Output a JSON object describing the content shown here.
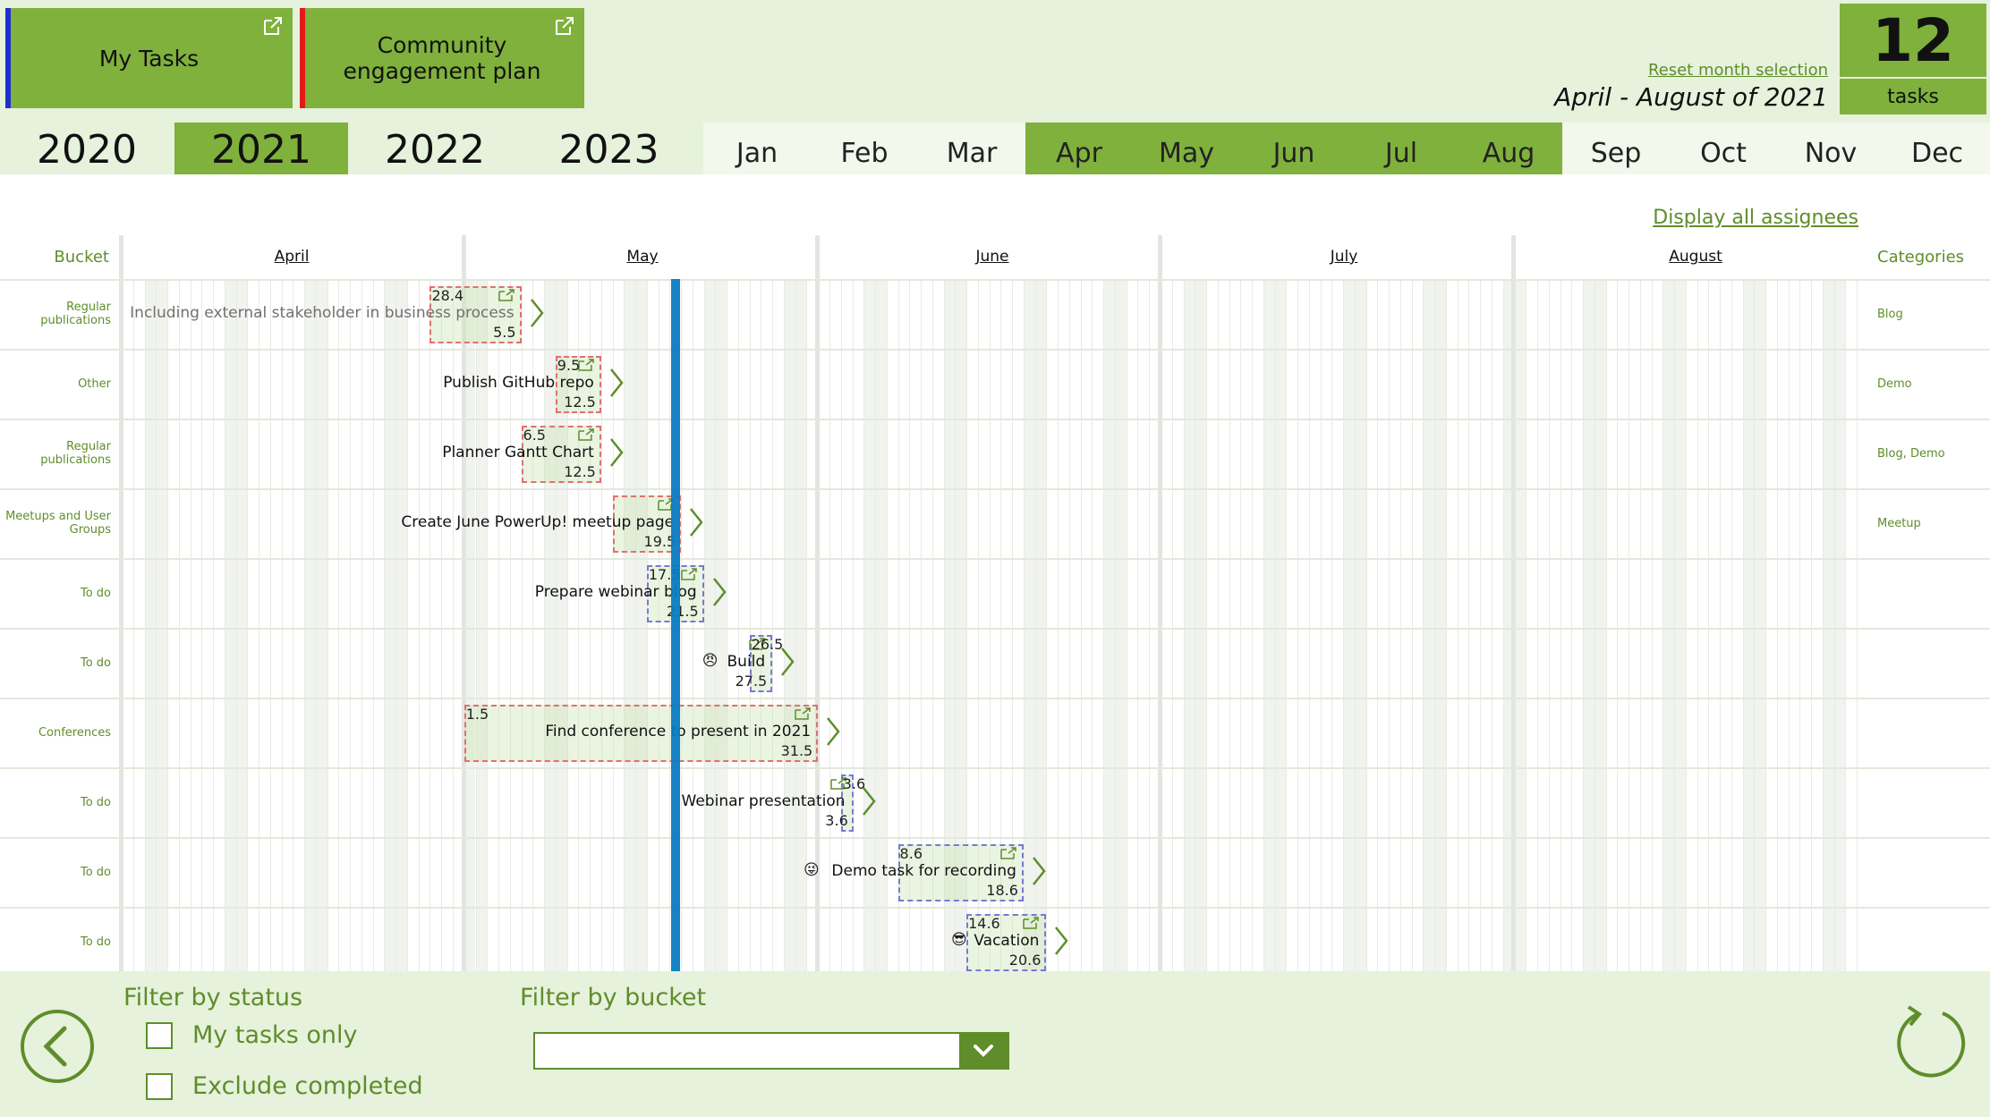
{
  "header": {
    "plans": [
      {
        "label": "My Tasks",
        "stripe_color": "#1d2fd0"
      },
      {
        "label": "Community engagement plan",
        "stripe_color": "#e01a1a"
      }
    ],
    "reset_link": "Reset month selection",
    "range_label": "April - August of 2021",
    "task_count": "12",
    "task_count_label": "tasks"
  },
  "years": [
    {
      "label": "2020",
      "selected": false
    },
    {
      "label": "2021",
      "selected": true
    },
    {
      "label": "2022",
      "selected": false
    },
    {
      "label": "2023",
      "selected": false
    }
  ],
  "months": [
    {
      "label": "Jan",
      "selected": false
    },
    {
      "label": "Feb",
      "selected": false
    },
    {
      "label": "Mar",
      "selected": false
    },
    {
      "label": "Apr",
      "selected": true
    },
    {
      "label": "May",
      "selected": true
    },
    {
      "label": "Jun",
      "selected": true
    },
    {
      "label": "Jul",
      "selected": true
    },
    {
      "label": "Aug",
      "selected": true
    },
    {
      "label": "Sep",
      "selected": false
    },
    {
      "label": "Oct",
      "selected": false
    },
    {
      "label": "Nov",
      "selected": false
    },
    {
      "label": "Dec",
      "selected": false
    }
  ],
  "gantt": {
    "display_all_link": "Display all assignees",
    "bucket_header": "Bucket",
    "categories_header": "Categories",
    "month_headers": [
      "April",
      "May",
      "June",
      "July",
      "August"
    ],
    "today": "2021-05-19",
    "colors": {
      "accent": "#7fb13c",
      "accent_dark": "#5f8d2a",
      "today": "#0a7bc2",
      "pink_border": "#e07070",
      "blue_border": "#7878d8"
    },
    "rows": [
      {
        "bucket": "Regular publications",
        "category": "Blog",
        "name": "Including external stakeholder in business process",
        "start_label": "28.4",
        "end_label": "5.5",
        "start": "2021-04-28",
        "end": "2021-05-05",
        "border": "pink",
        "muted": true,
        "icon": ""
      },
      {
        "bucket": "Other",
        "category": "Demo",
        "name": "Publish GitHub repo",
        "start_label": "9.5",
        "end_label": "12.5",
        "start": "2021-05-09",
        "end": "2021-05-12",
        "border": "pink",
        "muted": false,
        "icon": ""
      },
      {
        "bucket": "Regular publications",
        "category": "Blog, Demo",
        "name": "Planner Gantt Chart",
        "start_label": "6.5",
        "end_label": "12.5",
        "start": "2021-05-06",
        "end": "2021-05-12",
        "border": "pink",
        "muted": false,
        "icon": ""
      },
      {
        "bucket": "Meetups and User Groups",
        "category": "Meetup",
        "name": "Create June PowerUp! meetup page",
        "start_label": "",
        "end_label": "19.5",
        "start": "2021-05-14",
        "end": "2021-05-19",
        "border": "pink",
        "muted": false,
        "icon": ""
      },
      {
        "bucket": "To do",
        "category": "",
        "name": "Prepare webinar blog",
        "start_label": "17.5",
        "end_label": "21.5",
        "start": "2021-05-17",
        "end": "2021-05-21",
        "border": "blue",
        "muted": false,
        "icon": ""
      },
      {
        "bucket": "To do",
        "category": "",
        "name": "Build",
        "start_label": "26.5",
        "end_label": "27.5",
        "start": "2021-05-26",
        "end": "2021-05-27",
        "border": "blue",
        "muted": false,
        "icon": "😠"
      },
      {
        "bucket": "Conferences",
        "category": "",
        "name": "Find conference to present in 2021",
        "start_label": "1.5",
        "end_label": "31.5",
        "start": "2021-05-01",
        "end": "2021-05-31",
        "border": "pink",
        "muted": false,
        "icon": ""
      },
      {
        "bucket": "To do",
        "category": "",
        "name": "Webinar presentation",
        "start_label": "3.6",
        "end_label": "3.6",
        "start": "2021-06-03",
        "end": "2021-06-03",
        "border": "blue",
        "muted": false,
        "icon": ""
      },
      {
        "bucket": "To do",
        "category": "",
        "name": "Demo task for recording",
        "start_label": "8.6",
        "end_label": "18.6",
        "start": "2021-06-08",
        "end": "2021-06-18",
        "border": "blue",
        "muted": false,
        "icon": "😜"
      },
      {
        "bucket": "To do",
        "category": "",
        "name": "Vacation",
        "start_label": "14.6",
        "end_label": "20.6",
        "start": "2021-06-14",
        "end": "2021-06-20",
        "border": "blue",
        "muted": false,
        "icon": "😎"
      }
    ]
  },
  "filters": {
    "status_title": "Filter by status",
    "my_tasks_label": "My tasks only",
    "my_tasks_checked": false,
    "exclude_completed_label": "Exclude completed",
    "exclude_completed_checked": false,
    "bucket_title": "Filter by bucket",
    "bucket_value": ""
  }
}
